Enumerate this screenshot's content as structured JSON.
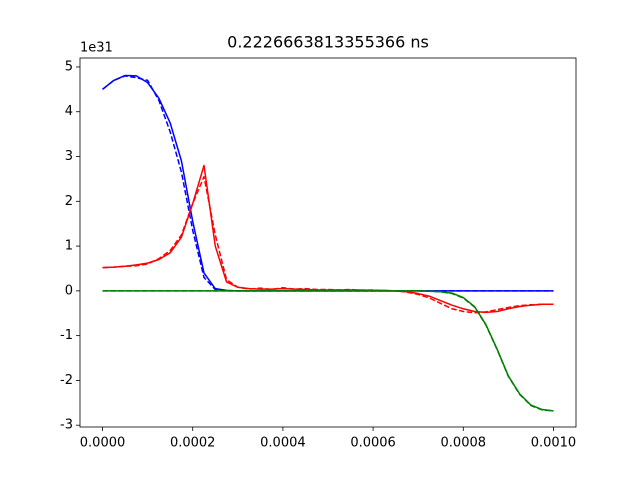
{
  "chart_data": {
    "type": "line",
    "title": "0.2226663813355366 ns",
    "y_offset_label": "1e31",
    "x": [
      0,
      2.5e-05,
      5e-05,
      7.5e-05,
      0.0001,
      0.000125,
      0.00015,
      0.000175,
      0.0002,
      0.000225,
      0.00025,
      0.000275,
      0.0003,
      0.000325,
      0.00035,
      0.000375,
      0.0004,
      0.000425,
      0.00045,
      0.000475,
      0.0005,
      0.000525,
      0.00055,
      0.000575,
      0.0006,
      0.000625,
      0.00065,
      0.000675,
      0.0007,
      0.000725,
      0.00075,
      0.000775,
      0.0008,
      0.000825,
      0.00085,
      0.000875,
      0.0009,
      0.000925,
      0.00095,
      0.000975,
      0.001
    ],
    "series": [
      {
        "color": "#0000ff",
        "linestyle": "solid",
        "values": [
          4.5,
          4.7,
          4.81,
          4.8,
          4.65,
          4.3,
          3.75,
          2.9,
          1.55,
          0.4,
          0.05,
          0.01,
          0,
          0,
          0,
          0,
          0,
          0,
          0,
          0,
          0,
          0,
          0,
          0,
          0,
          0,
          0,
          0,
          0,
          0,
          0,
          0,
          0,
          0,
          0,
          0,
          0,
          0,
          0,
          0,
          0
        ]
      },
      {
        "color": "#0000ff",
        "linestyle": "dashed",
        "values": [
          4.5,
          4.7,
          4.8,
          4.76,
          4.7,
          4.25,
          3.55,
          2.65,
          1.35,
          0.3,
          0.03,
          0,
          0,
          0,
          0,
          0,
          0,
          0,
          0,
          0,
          0,
          0,
          0,
          0,
          0,
          0,
          0,
          0,
          0,
          0,
          0,
          0,
          0,
          0,
          0,
          0,
          0,
          0,
          0,
          0,
          0
        ]
      },
      {
        "color": "#ff0000",
        "linestyle": "solid",
        "values": [
          0.52,
          0.53,
          0.55,
          0.58,
          0.62,
          0.7,
          0.85,
          1.2,
          1.95,
          2.8,
          1.0,
          0.2,
          0.08,
          0.05,
          0.04,
          0.04,
          0.05,
          0.04,
          0.03,
          0.02,
          0.02,
          0.02,
          0.02,
          0.02,
          0.01,
          0.01,
          0,
          -0.02,
          -0.06,
          -0.12,
          -0.22,
          -0.32,
          -0.4,
          -0.46,
          -0.48,
          -0.46,
          -0.4,
          -0.35,
          -0.32,
          -0.3,
          -0.3
        ]
      },
      {
        "color": "#ff0000",
        "linestyle": "dashed",
        "values": [
          0.52,
          0.53,
          0.55,
          0.56,
          0.6,
          0.72,
          0.9,
          1.25,
          1.95,
          2.55,
          1.25,
          0.25,
          0.08,
          0.04,
          0.06,
          0.03,
          0.07,
          0.04,
          0.05,
          0.03,
          0.03,
          0.02,
          0.03,
          0.01,
          0.02,
          0,
          0,
          -0.03,
          -0.08,
          -0.16,
          -0.28,
          -0.4,
          -0.46,
          -0.49,
          -0.47,
          -0.42,
          -0.37,
          -0.33,
          -0.31,
          -0.3,
          -0.3
        ]
      },
      {
        "color": "#008000",
        "linestyle": "solid",
        "values": [
          0,
          0,
          0,
          0,
          0,
          0,
          0,
          0,
          0,
          0,
          0,
          0,
          0,
          0,
          0,
          0,
          0,
          0,
          0,
          0,
          0,
          0,
          0,
          0,
          0,
          0,
          0,
          0,
          0,
          -0.01,
          -0.02,
          -0.05,
          -0.15,
          -0.35,
          -0.75,
          -1.3,
          -1.9,
          -2.3,
          -2.55,
          -2.65,
          -2.68
        ]
      },
      {
        "color": "#008000",
        "linestyle": "dashed",
        "values": [
          0,
          0,
          0,
          0,
          0,
          0,
          0,
          0,
          0,
          0,
          0,
          0,
          0,
          0,
          0,
          0,
          0,
          0,
          0,
          0,
          0,
          0,
          0,
          0,
          0,
          0,
          0,
          0,
          0,
          -0.01,
          -0.02,
          -0.06,
          -0.16,
          -0.36,
          -0.76,
          -1.31,
          -1.91,
          -2.31,
          -2.56,
          -2.66,
          -2.68
        ]
      }
    ],
    "xlim": [
      -5e-05,
      0.00105
    ],
    "ylim": [
      -3.04,
      5.2
    ],
    "xticks": [
      {
        "value": 0,
        "label": "0.0000"
      },
      {
        "value": 0.0002,
        "label": "0.0002"
      },
      {
        "value": 0.0004,
        "label": "0.0004"
      },
      {
        "value": 0.0006,
        "label": "0.0006"
      },
      {
        "value": 0.0008,
        "label": "0.0008"
      },
      {
        "value": 0.001,
        "label": "0.0010"
      }
    ],
    "yticks": [
      -3,
      -2,
      -1,
      0,
      1,
      2,
      3,
      4,
      5
    ],
    "grid": false
  }
}
